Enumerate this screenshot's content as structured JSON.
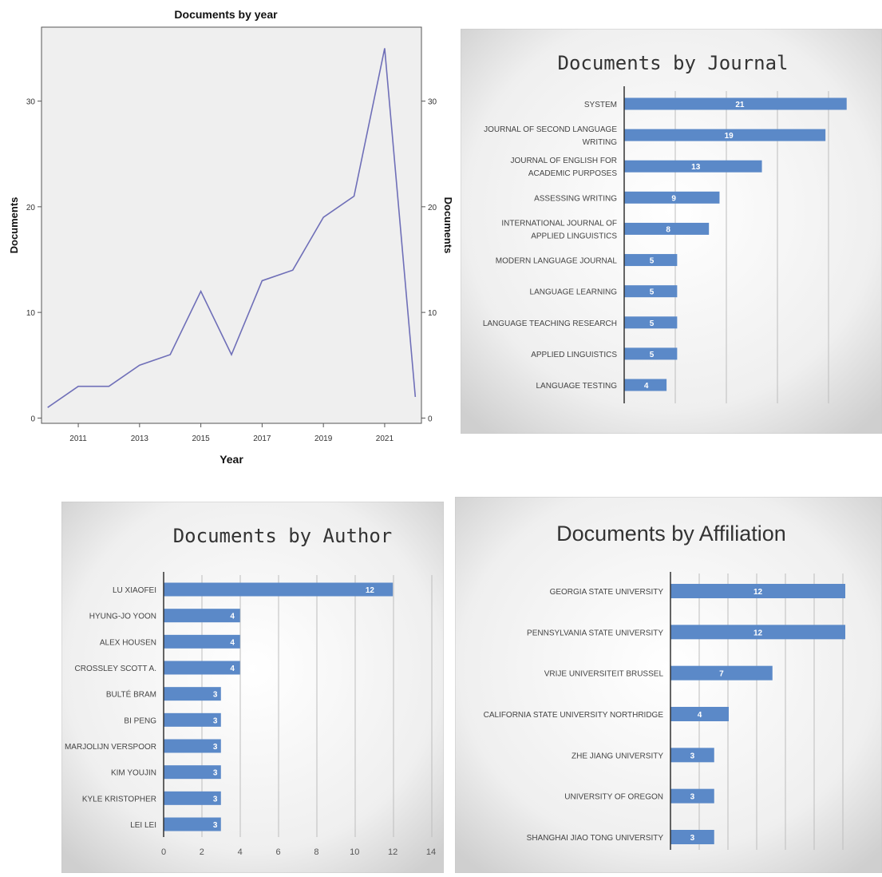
{
  "chart_data": [
    {
      "type": "line",
      "title": "Documents by year",
      "xlabel": "Year",
      "ylabel": "Documents",
      "ylabel_right": "Documents",
      "x": [
        2010,
        2011,
        2012,
        2013,
        2014,
        2015,
        2016,
        2017,
        2018,
        2019,
        2020,
        2021,
        2022
      ],
      "values": [
        1,
        3,
        3,
        5,
        6,
        12,
        6,
        13,
        14,
        19,
        21,
        35,
        2
      ],
      "xticks": [
        "2011",
        "2013",
        "2015",
        "2017",
        "2019",
        "2021"
      ],
      "yticks": [
        "0",
        "10",
        "20",
        "30"
      ],
      "xlim": [
        2009.8,
        2022.2
      ],
      "ylim": [
        -0.5,
        37
      ],
      "grid": false,
      "line_color": "#6f6fb8"
    },
    {
      "type": "bar",
      "orientation": "horizontal",
      "title": "Documents by Journal",
      "categories": [
        "SYSTEM",
        "JOURNAL OF SECOND LANGUAGE WRITING",
        "JOURNAL OF ENGLISH FOR ACADEMIC PURPOSES",
        "ASSESSING WRITING",
        "INTERNATIONAL JOURNAL OF APPLIED LINGUISTICS",
        "MODERN LANGUAGE JOURNAL",
        "LANGUAGE LEARNING",
        "LANGUAGE TEACHING RESEARCH",
        "APPLIED LINGUISTICS",
        "LANGUAGE TESTING"
      ],
      "category_lines": [
        [
          "SYSTEM"
        ],
        [
          "JOURNAL OF SECOND LANGUAGE",
          "WRITING"
        ],
        [
          "JOURNAL OF ENGLISH FOR",
          "ACADEMIC PURPOSES"
        ],
        [
          "ASSESSING WRITING"
        ],
        [
          "INTERNATIONAL JOURNAL OF",
          "APPLIED LINGUISTICS"
        ],
        [
          "MODERN LANGUAGE JOURNAL"
        ],
        [
          "LANGUAGE LEARNING"
        ],
        [
          "LANGUAGE TEACHING RESEARCH"
        ],
        [
          "APPLIED LINGUISTICS"
        ],
        [
          "LANGUAGE TESTING"
        ]
      ],
      "values": [
        21,
        19,
        13,
        9,
        8,
        5,
        5,
        5,
        5,
        4
      ],
      "xlim": [
        0,
        22
      ],
      "grid": true,
      "bar_color": "#5b89c8"
    },
    {
      "type": "bar",
      "orientation": "horizontal",
      "title": "Documents by Author",
      "categories": [
        "LU XIAOFEI",
        "HYUNG-JO YOON",
        "ALEX HOUSEN",
        "CROSSLEY SCOTT A.",
        "BULTÉ BRAM",
        "BI PENG",
        "MARJOLIJN VERSPOOR",
        "KIM YOUJIN",
        "KYLE KRISTOPHER",
        "LEI LEI"
      ],
      "values": [
        12,
        4,
        4,
        4,
        3,
        3,
        3,
        3,
        3,
        3
      ],
      "xticks": [
        "0",
        "2",
        "4",
        "6",
        "8",
        "10",
        "12",
        "14"
      ],
      "xlim": [
        0,
        14
      ],
      "grid": true,
      "bar_color": "#5b89c8"
    },
    {
      "type": "bar",
      "orientation": "horizontal",
      "title": "Documents by Affiliation",
      "categories": [
        "GEORGIA STATE UNIVERSITY",
        "PENNSYLVANIA STATE UNIVERSITY",
        "VRIJE UNIVERSITEIT BRUSSEL",
        "CALIFORNIA STATE UNIVERSITY NORTHRIDGE",
        "ZHE JIANG UNIVERSITY",
        "UNIVERSITY OF OREGON",
        "SHANGHAI JIAO TONG UNIVERSITY"
      ],
      "values": [
        12,
        12,
        7,
        4,
        3,
        3,
        3
      ],
      "xlim": [
        0,
        12
      ],
      "grid": true,
      "bar_color": "#5b89c8"
    }
  ]
}
